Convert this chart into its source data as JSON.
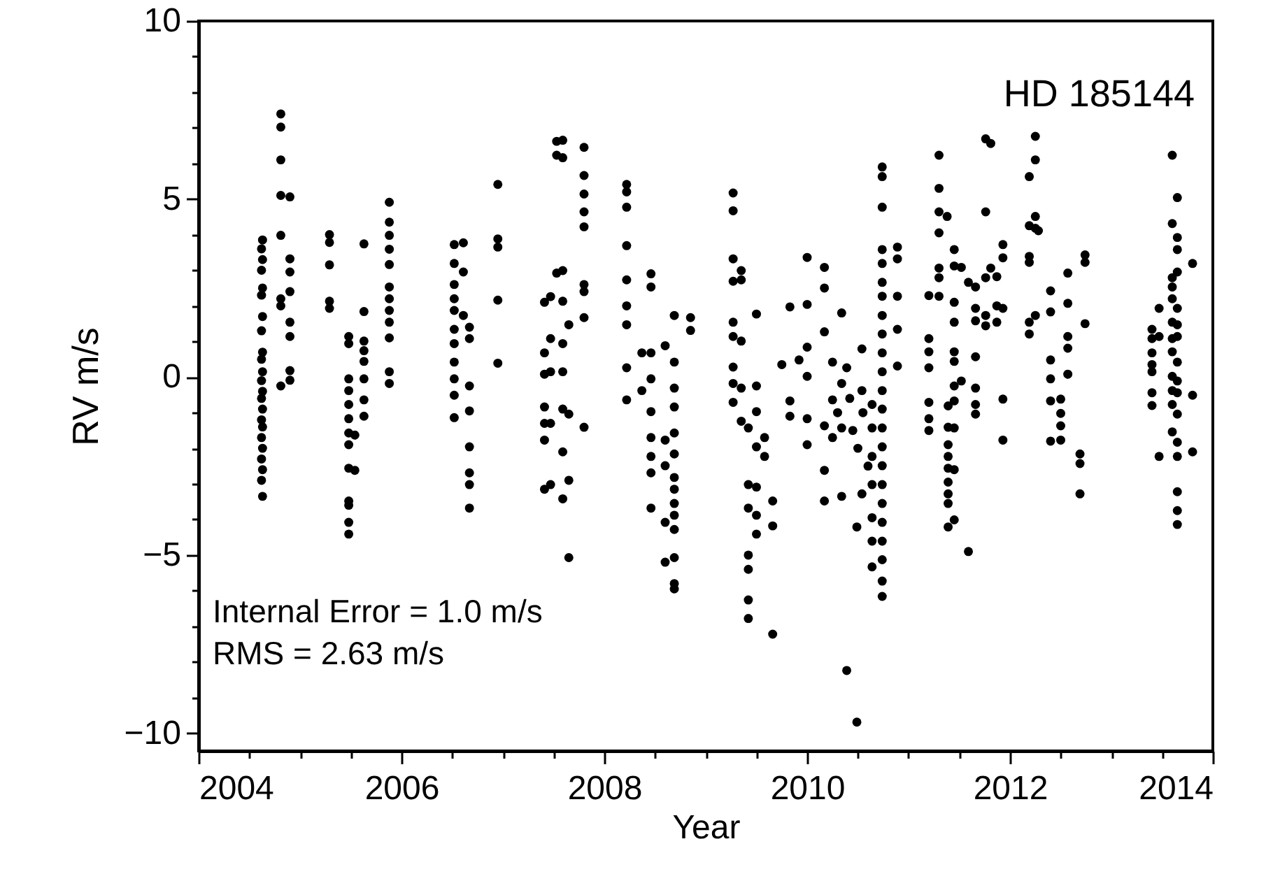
{
  "chart_data": {
    "type": "scatter",
    "xlabel": "Year",
    "ylabel": "RV m/s",
    "annotations": [
      "HD 185144",
      "Internal Error = 1.0 m/s",
      "RMS = 2.63 m/s"
    ],
    "marker": "circle",
    "grid": false,
    "xlim": [
      2004,
      2014
    ],
    "ylim": [
      -10.5,
      10
    ],
    "xticks": [
      2004,
      {
        "value": 2004.5,
        "label": null
      },
      {
        "value": 2005,
        "label": null
      },
      {
        "value": 2005.5,
        "label": null
      },
      2006,
      {
        "value": 2006.5,
        "label": null
      },
      {
        "value": 2007,
        "label": null
      },
      {
        "value": 2007.5,
        "label": null
      },
      2008,
      {
        "value": 2008.5,
        "label": null
      },
      {
        "value": 2009,
        "label": null
      },
      {
        "value": 2009.5,
        "label": null
      },
      2010,
      {
        "value": 2010.5,
        "label": null
      },
      {
        "value": 2011,
        "label": null
      },
      {
        "value": 2011.5,
        "label": null
      },
      2012,
      {
        "value": 2012.5,
        "label": null
      },
      {
        "value": 2013,
        "label": null
      },
      {
        "value": 2013.5,
        "label": null
      },
      2014
    ],
    "yticks": [
      {
        "value": -10,
        "label": "−10"
      },
      {
        "value": -9,
        "label": null
      },
      {
        "value": -8,
        "label": null
      },
      {
        "value": -7,
        "label": null
      },
      {
        "value": -6,
        "label": null
      },
      {
        "value": -5,
        "label": "−5"
      },
      {
        "value": -4,
        "label": null
      },
      {
        "value": -3,
        "label": null
      },
      {
        "value": -2,
        "label": null
      },
      {
        "value": -1,
        "label": null
      },
      0,
      {
        "value": 1,
        "label": null
      },
      {
        "value": 2,
        "label": null
      },
      {
        "value": 3,
        "label": null
      },
      {
        "value": 4,
        "label": null
      },
      5,
      {
        "value": 6,
        "label": null
      },
      {
        "value": 7,
        "label": null
      },
      {
        "value": 8,
        "label": null
      },
      {
        "value": 9,
        "label": null
      },
      10
    ],
    "series": [
      {
        "color": "#000000",
        "x": [
          2004.63,
          2004.62,
          2004.63,
          2004.62,
          2004.63,
          2004.62,
          2004.63,
          2004.62,
          2004.63,
          2004.62,
          2004.63,
          2004.62,
          2004.63,
          2004.62,
          2004.63,
          2004.62,
          2004.63,
          2004.62,
          2004.63,
          2004.62,
          2004.63,
          2004.62,
          2004.63,
          2004.81,
          2004.81,
          2004.81,
          2004.81,
          2004.81,
          2004.81,
          2004.81,
          2004.81,
          2004.9,
          2004.9,
          2004.9,
          2004.9,
          2004.9,
          2004.9,
          2004.9,
          2004.9,
          2005.29,
          2005.29,
          2005.29,
          2005.29,
          2005.29,
          2005.48,
          2005.48,
          2005.48,
          2005.48,
          2005.48,
          2005.48,
          2005.48,
          2005.48,
          2005.48,
          2005.48,
          2005.48,
          2005.48,
          2005.48,
          2005.54,
          2005.54,
          2005.63,
          2005.63,
          2005.63,
          2005.63,
          2005.63,
          2005.63,
          2005.63,
          2005.63,
          2005.88,
          2005.88,
          2005.88,
          2005.88,
          2005.88,
          2005.88,
          2005.88,
          2005.88,
          2005.88,
          2005.88,
          2005.88,
          2005.88,
          2006.52,
          2006.52,
          2006.52,
          2006.52,
          2006.52,
          2006.52,
          2006.52,
          2006.52,
          2006.52,
          2006.52,
          2006.52,
          2006.61,
          2006.61,
          2006.61,
          2006.67,
          2006.67,
          2006.67,
          2006.67,
          2006.67,
          2006.67,
          2006.67,
          2006.67,
          2006.95,
          2006.95,
          2006.95,
          2006.95,
          2006.95,
          2007.41,
          2007.41,
          2007.41,
          2007.41,
          2007.41,
          2007.41,
          2007.41,
          2007.53,
          2007.53,
          2007.53,
          2007.47,
          2007.47,
          2007.47,
          2007.47,
          2007.47,
          2007.59,
          2007.59,
          2007.59,
          2007.59,
          2007.59,
          2007.59,
          2007.59,
          2007.59,
          2007.59,
          2007.65,
          2007.65,
          2007.65,
          2007.65,
          2007.8,
          2007.8,
          2007.8,
          2007.8,
          2007.8,
          2007.8,
          2007.8,
          2007.8,
          2007.8,
          2008.22,
          2008.22,
          2008.22,
          2008.22,
          2008.22,
          2008.22,
          2008.22,
          2008.22,
          2008.22,
          2008.46,
          2008.46,
          2008.46,
          2008.46,
          2008.46,
          2008.46,
          2008.46,
          2008.46,
          2008.46,
          2008.37,
          2008.37,
          2008.6,
          2008.6,
          2008.6,
          2008.6,
          2008.6,
          2008.69,
          2008.69,
          2008.69,
          2008.69,
          2008.69,
          2008.69,
          2008.69,
          2008.69,
          2008.69,
          2008.69,
          2008.69,
          2008.69,
          2008.69,
          2008.69,
          2008.85,
          2008.85,
          2009.27,
          2009.27,
          2009.27,
          2009.27,
          2009.27,
          2009.27,
          2009.27,
          2009.27,
          2009.27,
          2009.35,
          2009.35,
          2009.35,
          2009.35,
          2009.35,
          2009.42,
          2009.42,
          2009.42,
          2009.42,
          2009.42,
          2009.42,
          2009.42,
          2009.5,
          2009.5,
          2009.5,
          2009.5,
          2009.5,
          2009.5,
          2009.5,
          2009.58,
          2009.58,
          2009.66,
          2009.66,
          2009.66,
          2009.75,
          2009.83,
          2009.83,
          2009.83,
          2009.92,
          2010.0,
          2010.0,
          2010.0,
          2010.0,
          2010.0,
          2010.0,
          2010.17,
          2010.17,
          2010.17,
          2010.17,
          2010.17,
          2010.17,
          2010.25,
          2010.25,
          2010.25,
          2010.34,
          2010.34,
          2010.34,
          2010.34,
          2010.39,
          2010.39,
          2010.49,
          2010.49,
          2010.54,
          2010.54,
          2010.54,
          2010.3,
          2010.45,
          2010.5,
          2010.6,
          2010.55,
          2010.42,
          2010.74,
          2010.74,
          2010.74,
          2010.74,
          2010.74,
          2010.74,
          2010.74,
          2010.74,
          2010.74,
          2010.74,
          2010.74,
          2010.74,
          2010.74,
          2010.74,
          2010.74,
          2010.74,
          2010.74,
          2010.74,
          2010.74,
          2010.74,
          2010.74,
          2010.74,
          2010.74,
          2010.64,
          2010.64,
          2010.64,
          2010.64,
          2010.64,
          2010.64,
          2010.64,
          2010.89,
          2010.89,
          2010.89,
          2010.89,
          2010.89,
          2011.2,
          2011.2,
          2011.2,
          2011.2,
          2011.2,
          2011.2,
          2011.2,
          2011.3,
          2011.3,
          2011.3,
          2011.3,
          2011.3,
          2011.3,
          2011.3,
          2011.38,
          2011.39,
          2011.39,
          2011.39,
          2011.39,
          2011.39,
          2011.39,
          2011.39,
          2011.39,
          2011.39,
          2011.45,
          2011.45,
          2011.45,
          2011.45,
          2011.45,
          2011.45,
          2011.45,
          2011.45,
          2011.45,
          2011.45,
          2011.45,
          2011.52,
          2011.52,
          2011.59,
          2011.59,
          2011.66,
          2011.66,
          2011.66,
          2011.66,
          2011.66,
          2011.66,
          2011.66,
          2011.76,
          2011.76,
          2011.76,
          2011.76,
          2011.76,
          2011.81,
          2011.81,
          2011.87,
          2011.87,
          2011.87,
          2011.93,
          2011.93,
          2011.93,
          2011.93,
          2011.93,
          2012.19,
          2012.19,
          2012.19,
          2012.19,
          2012.19,
          2012.19,
          2012.25,
          2012.25,
          2012.25,
          2012.25,
          2012.25,
          2012.28,
          2012.4,
          2012.4,
          2012.4,
          2012.4,
          2012.4,
          2012.4,
          2012.5,
          2012.5,
          2012.5,
          2012.5,
          2012.57,
          2012.57,
          2012.57,
          2012.57,
          2012.57,
          2012.69,
          2012.69,
          2012.69,
          2012.74,
          2012.74,
          2012.74,
          2013.4,
          2013.4,
          2013.4,
          2013.4,
          2013.4,
          2013.4,
          2013.4,
          2013.47,
          2013.47,
          2013.47,
          2013.6,
          2013.6,
          2013.6,
          2013.6,
          2013.6,
          2013.6,
          2013.6,
          2013.6,
          2013.6,
          2013.6,
          2013.6,
          2013.6,
          2013.65,
          2013.65,
          2013.65,
          2013.65,
          2013.65,
          2013.65,
          2013.65,
          2013.65,
          2013.65,
          2013.65,
          2013.65,
          2013.65,
          2013.65,
          2013.65,
          2013.65,
          2013.65,
          2013.8,
          2013.8,
          2013.8
        ],
        "values": [
          3.85,
          3.6,
          3.3,
          3.0,
          2.5,
          2.3,
          1.7,
          1.3,
          0.7,
          0.5,
          0.15,
          -0.1,
          -0.4,
          -0.6,
          -0.9,
          -1.2,
          -1.4,
          -1.7,
          -2.0,
          -2.3,
          -2.6,
          -2.9,
          -3.35,
          7.39,
          7.02,
          6.1,
          5.1,
          3.98,
          2.2,
          2.0,
          -0.25,
          5.06,
          3.32,
          2.95,
          2.4,
          1.54,
          1.14,
          0.18,
          -0.09,
          4.0,
          3.78,
          3.15,
          2.13,
          1.93,
          1.14,
          0.94,
          -0.05,
          -0.38,
          -0.77,
          -1.17,
          -1.57,
          -1.9,
          -2.56,
          -3.48,
          -3.6,
          -4.08,
          -4.41,
          -1.63,
          -2.62,
          3.74,
          1.84,
          1.01,
          0.74,
          0.44,
          -0.05,
          -0.64,
          -1.1,
          4.91,
          4.35,
          3.98,
          3.59,
          3.16,
          2.53,
          2.2,
          1.87,
          1.54,
          1.1,
          0.15,
          -0.18,
          3.72,
          3.19,
          2.6,
          2.2,
          1.87,
          1.34,
          0.94,
          0.42,
          -0.05,
          -0.51,
          -1.14,
          3.77,
          2.95,
          1.73,
          1.4,
          1.08,
          -0.25,
          -0.95,
          -1.96,
          -2.69,
          -3.02,
          -3.68,
          5.41,
          3.88,
          3.65,
          2.16,
          0.39,
          2.1,
          0.68,
          0.08,
          -0.84,
          -1.3,
          -1.77,
          -3.15,
          6.62,
          6.23,
          2.92,
          2.26,
          1.08,
          0.15,
          -1.3,
          -3.02,
          6.65,
          6.16,
          2.99,
          2.13,
          0.94,
          0.15,
          -0.9,
          -2.1,
          -3.42,
          1.47,
          -1.04,
          -2.9,
          -5.07,
          6.45,
          5.66,
          5.14,
          4.64,
          4.22,
          2.6,
          2.4,
          1.67,
          -1.41,
          5.41,
          5.2,
          4.77,
          3.69,
          2.73,
          2.0,
          1.47,
          0.26,
          -0.64,
          2.9,
          2.53,
          0.68,
          -0.05,
          -0.97,
          -1.7,
          -2.23,
          -2.69,
          -3.68,
          0.68,
          -0.38,
          0.88,
          -1.77,
          -2.49,
          -4.08,
          -5.2,
          1.73,
          0.42,
          -0.31,
          -0.84,
          -1.57,
          -2.16,
          -2.82,
          -3.15,
          -3.55,
          -3.88,
          -4.28,
          -5.07,
          -5.8,
          -5.95,
          1.67,
          1.31,
          5.17,
          4.67,
          3.32,
          2.69,
          1.54,
          1.14,
          0.28,
          -0.18,
          -0.71,
          2.99,
          2.73,
          1.01,
          -0.31,
          -1.24,
          -1.43,
          -3.02,
          -3.68,
          -5.0,
          -5.4,
          -6.26,
          -6.78,
          1.77,
          -0.25,
          -0.97,
          -1.96,
          -3.09,
          -3.88,
          -4.41,
          -1.7,
          -2.23,
          -3.48,
          -4.18,
          -7.22,
          0.35,
          1.97,
          -0.67,
          -1.1,
          0.48,
          3.36,
          2.04,
          0.84,
          0.02,
          -1.17,
          -1.9,
          3.08,
          2.5,
          1.27,
          -1.37,
          -2.62,
          -3.48,
          0.42,
          -0.64,
          -1.7,
          1.8,
          -0.18,
          -1.43,
          -3.35,
          0.26,
          -8.24,
          -4.21,
          -9.69,
          0.79,
          -0.38,
          -3.28,
          -1.0,
          -1.5,
          -2.0,
          -2.5,
          -1.0,
          -0.6,
          5.9,
          5.63,
          4.77,
          3.58,
          3.19,
          2.66,
          2.27,
          1.73,
          1.21,
          0.68,
          0.15,
          -0.38,
          -0.9,
          -1.43,
          -1.96,
          -2.49,
          -3.02,
          -3.55,
          -4.08,
          -4.61,
          -5.13,
          -5.73,
          -6.16,
          -0.77,
          -1.43,
          -2.23,
          -3.02,
          -3.95,
          -4.61,
          -5.33,
          3.32,
          2.27,
          1.34,
          0.31,
          3.65,
          2.29,
          1.08,
          0.71,
          0.26,
          -0.71,
          -1.17,
          -1.5,
          6.23,
          5.3,
          4.64,
          4.05,
          3.06,
          2.79,
          2.27,
          4.51,
          -0.81,
          -1.41,
          -1.9,
          -2.23,
          -2.56,
          -2.95,
          -3.28,
          -3.55,
          -4.21,
          3.58,
          3.12,
          2.1,
          1.54,
          0.71,
          0.44,
          -0.25,
          -0.67,
          -1.43,
          -2.6,
          -4.01,
          3.08,
          -0.11,
          2.66,
          -4.9,
          2.53,
          1.93,
          1.58,
          0.57,
          -0.31,
          -0.77,
          -1.04,
          6.69,
          4.64,
          2.79,
          1.73,
          1.44,
          6.56,
          3.06,
          2.82,
          2.0,
          1.54,
          3.72,
          3.35,
          1.93,
          -0.62,
          -1.77,
          5.63,
          4.25,
          3.39,
          3.22,
          1.54,
          1.21,
          6.76,
          6.1,
          4.51,
          4.18,
          1.73,
          4.11,
          2.42,
          1.83,
          0.48,
          -0.05,
          -0.67,
          -1.8,
          -0.62,
          -1.02,
          -1.37,
          -1.77,
          2.92,
          2.07,
          1.14,
          0.81,
          0.08,
          -2.16,
          -2.43,
          -3.28,
          3.43,
          3.22,
          1.5,
          1.34,
          1.08,
          0.68,
          0.35,
          0.15,
          -0.44,
          -0.8,
          1.93,
          1.14,
          -2.23,
          6.23,
          4.31,
          2.79,
          2.53,
          2.2,
          1.54,
          1.08,
          0.71,
          0.02,
          -0.38,
          -0.77,
          -1.54,
          5.04,
          3.92,
          3.58,
          2.95,
          1.93,
          1.47,
          1.14,
          0.42,
          -0.11,
          -0.44,
          -1.04,
          -1.83,
          -2.23,
          -3.22,
          -3.75,
          -4.14,
          3.19,
          -0.51,
          -2.1
        ]
      }
    ]
  }
}
